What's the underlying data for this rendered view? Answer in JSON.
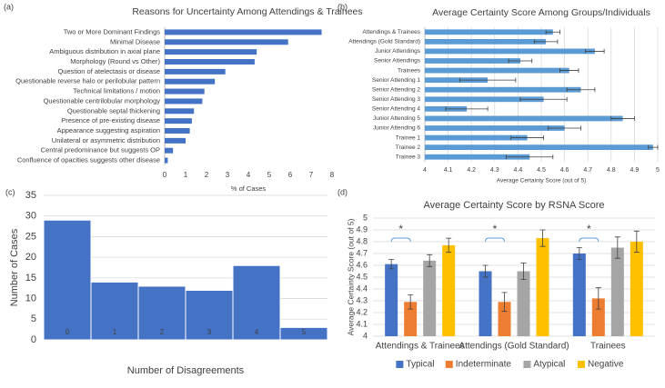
{
  "chart_data": [
    {
      "type": "hbar",
      "panel_label": "(a)",
      "title": "Reasons for Uncertainty Among Attendings & Trainees",
      "x_label": "% of Cases",
      "categories": [
        "Two or More Dominant Findings",
        "Minimal Disease",
        "Ambiguous distribution in axial plane",
        "Morphology (Round vs Other)",
        "Question of atelectasis or disease",
        "Questionable reverse halo or perilobular pattern",
        "Technical limitations / motion",
        "Questionable centrilobular morphology",
        "Questionable septal thickening",
        "Presence of pre-existing disease",
        "Appearance suggesting aspiration",
        "Unilateral or asymmetric distribution",
        "Central predominance but suggests OP",
        "Confluence of opacities suggests other disease"
      ],
      "values": [
        7.5,
        5.9,
        4.4,
        4.3,
        2.9,
        2.4,
        1.9,
        1.8,
        1.4,
        1.3,
        1.2,
        1.0,
        0.4,
        0.15
      ],
      "color": "#4472c4",
      "xlim": [
        0,
        8
      ],
      "xticks": [
        0,
        1,
        2,
        3,
        4,
        5,
        6,
        7,
        8
      ],
      "grid": false
    },
    {
      "type": "hbar",
      "panel_label": "(b)",
      "title": "Average Certainty Score Among Groups/Individuals",
      "x_label": "Average Certainty Score (out of 5)",
      "categories": [
        "Attendings & Trainees",
        "Attendings (Gold Standard)",
        "Junior Attendings",
        "Senior Attendings",
        "Trainees",
        "Senior Attending 1",
        "Senior Attending 2",
        "Senior Attending 3",
        "Senior Attending 4",
        "Junior Attending 5",
        "Junior Attending 6",
        "Trainee 1",
        "Trainee 2",
        "Trainee 3"
      ],
      "values": [
        4.55,
        4.52,
        4.73,
        4.41,
        4.62,
        4.27,
        4.67,
        4.51,
        4.18,
        4.85,
        4.6,
        4.44,
        4.98,
        4.45
      ],
      "errors": [
        0.03,
        0.05,
        0.04,
        0.05,
        0.04,
        0.12,
        0.06,
        0.1,
        0.09,
        0.05,
        0.07,
        0.07,
        0.02,
        0.1
      ],
      "color": "#5b9bd5",
      "xlim": [
        4,
        5
      ],
      "xticks": [
        4,
        4.1,
        4.2,
        4.3,
        4.4,
        4.5,
        4.6,
        4.7,
        4.8,
        4.9,
        5
      ],
      "grid": true
    },
    {
      "type": "bar",
      "panel_label": "(c)",
      "x_label": "Number of Disagreements",
      "y_label": "Number of Cases",
      "categories": [
        "0",
        "1",
        "2",
        "3",
        "4",
        "5"
      ],
      "values": [
        29,
        14,
        13,
        12,
        18,
        3
      ],
      "color": "#4472c4",
      "ylim": [
        0,
        35
      ],
      "yticks": [
        0,
        5,
        10,
        15,
        20,
        25,
        30,
        35
      ],
      "grid": true
    },
    {
      "type": "bar",
      "panel_label": "(d)",
      "title": "Average Certainty Score by RSNA Score",
      "y_label": "Average Certainty Score (out of 5)",
      "categories": [
        "Attendings & Trainees",
        "Attendings (Gold Standard)",
        "Trainees"
      ],
      "series": [
        {
          "name": "Typical",
          "color": "#4472c4",
          "values": [
            4.61,
            4.55,
            4.7
          ],
          "errors": [
            0.04,
            0.05,
            0.05
          ]
        },
        {
          "name": "Indeterminate",
          "color": "#ed7d31",
          "values": [
            4.29,
            4.29,
            4.32
          ],
          "errors": [
            0.06,
            0.08,
            0.09
          ]
        },
        {
          "name": "Atypical",
          "color": "#a5a5a5",
          "values": [
            4.64,
            4.55,
            4.75
          ],
          "errors": [
            0.05,
            0.07,
            0.09
          ]
        },
        {
          "name": "Negative",
          "color": "#ffc000",
          "values": [
            4.77,
            4.83,
            4.8
          ],
          "errors": [
            0.06,
            0.07,
            0.09
          ]
        }
      ],
      "annotations": [
        "*",
        "*",
        "*"
      ],
      "ylim": [
        4,
        5
      ],
      "yticks": [
        4,
        4.1,
        4.2,
        4.3,
        4.4,
        4.5,
        4.6,
        4.7,
        4.8,
        4.9,
        5
      ],
      "grid": true,
      "legend": "bottom"
    }
  ]
}
